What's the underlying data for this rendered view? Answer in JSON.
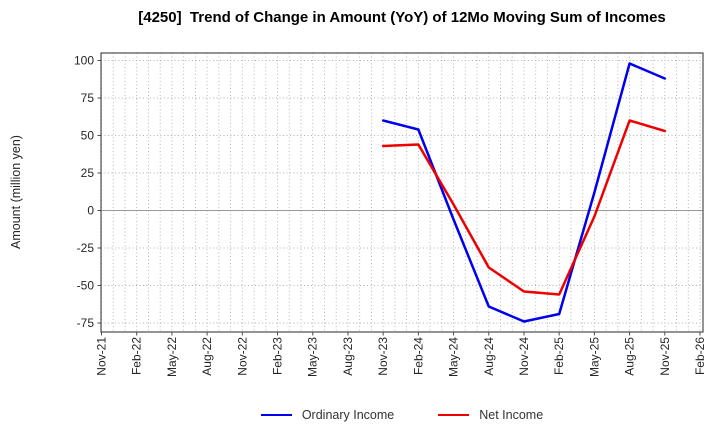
{
  "chart_data": {
    "type": "line",
    "title": "[4250]  Trend of Change in Amount (YoY) of 12Mo Moving Sum of Incomes",
    "xlabel": "",
    "ylabel": "Amount (million yen)",
    "ylim": [
      -81,
      105
    ],
    "yticks": [
      100,
      75,
      50,
      25,
      0,
      -25,
      -50,
      -75
    ],
    "x_tick_labels": [
      "Nov-21",
      "Feb-22",
      "May-22",
      "Aug-22",
      "Nov-22",
      "Feb-23",
      "May-23",
      "Aug-23",
      "Nov-23",
      "Feb-24",
      "May-24",
      "Aug-24",
      "Nov-24",
      "Feb-25",
      "May-25",
      "Aug-25",
      "Nov-25",
      "Feb-26"
    ],
    "x_tick_interval_months": 3,
    "grid": {
      "style": "dotted",
      "vertical": "every month",
      "horizontal_step": 25,
      "zero_line": "solid"
    },
    "legend_position": "bottom-center",
    "categories": [
      "Nov-23",
      "Feb-24",
      "May-24",
      "Aug-24",
      "Nov-24",
      "Feb-25",
      "May-25",
      "Aug-25",
      "Nov-25"
    ],
    "series_start_month": 24,
    "series_month_step": 3,
    "series": [
      {
        "name": "Ordinary Income",
        "color": "#0000ee",
        "values": [
          60,
          54,
          -6,
          -64,
          -74,
          -69,
          12,
          98,
          88
        ]
      },
      {
        "name": "Net Income",
        "color": "#ee0000",
        "values": [
          43,
          44,
          4,
          -38,
          -54,
          -56,
          -4,
          60,
          53
        ]
      }
    ]
  }
}
